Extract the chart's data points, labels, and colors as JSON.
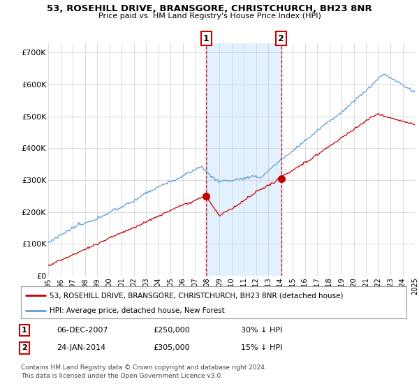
{
  "title": "53, ROSEHILL DRIVE, BRANSGORE, CHRISTCHURCH, BH23 8NR",
  "subtitle": "Price paid vs. HM Land Registry's House Price Index (HPI)",
  "legend_line1": "53, ROSEHILL DRIVE, BRANSGORE, CHRISTCHURCH, BH23 8NR (detached house)",
  "legend_line2": "HPI: Average price, detached house, New Forest",
  "annotation1_label": "1",
  "annotation1_date": "06-DEC-2007",
  "annotation1_price": "£250,000",
  "annotation1_hpi": "30% ↓ HPI",
  "annotation2_label": "2",
  "annotation2_date": "24-JAN-2014",
  "annotation2_price": "£305,000",
  "annotation2_hpi": "15% ↓ HPI",
  "footer": "Contains HM Land Registry data © Crown copyright and database right 2024.\nThis data is licensed under the Open Government Licence v3.0.",
  "hpi_color": "#5b9bd5",
  "sale_color": "#c00000",
  "background_color": "#ffffff",
  "plot_bg_color": "#ffffff",
  "annotation_box_color": "#cc0000",
  "shade_color": "#ddeeff",
  "ylim": [
    0,
    730000
  ],
  "yticks": [
    0,
    100000,
    200000,
    300000,
    400000,
    500000,
    600000,
    700000
  ],
  "ytick_labels": [
    "£0",
    "£100K",
    "£200K",
    "£300K",
    "£400K",
    "£500K",
    "£600K",
    "£700K"
  ],
  "sale1_x": 2007.92,
  "sale1_y": 250000,
  "sale2_x": 2014.07,
  "sale2_y": 305000,
  "shade_x1": 2007.92,
  "shade_x2": 2014.07,
  "xmin": 1995,
  "xmax": 2025
}
